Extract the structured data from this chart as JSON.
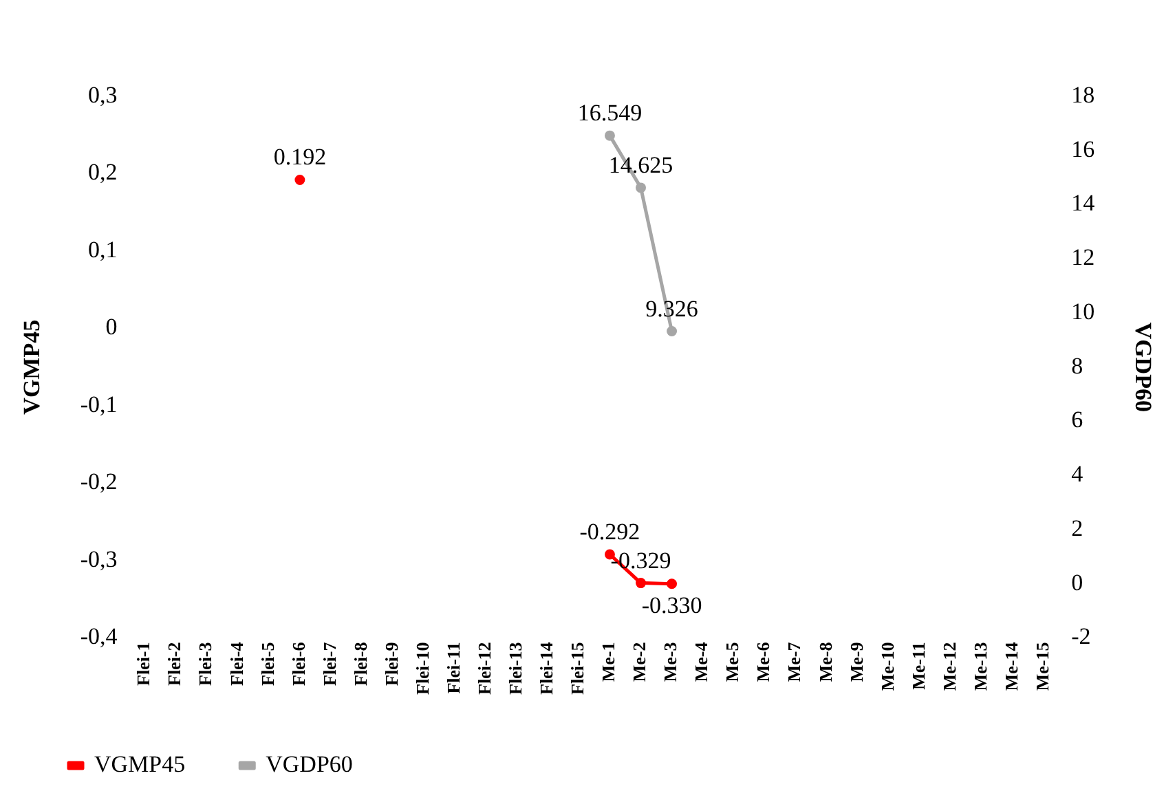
{
  "chart_data": {
    "type": "line",
    "ylabel": "VGMP45",
    "y2label": "VGDP60",
    "categories": [
      "Flei-1",
      "Flei-2",
      "Flei-3",
      "Flei-4",
      "Flei-5",
      "Flei-6",
      "Flei-7",
      "Flei-8",
      "Flei-9",
      "Flei-10",
      "Flei-11",
      "Flei-12",
      "Flei-13",
      "Flei-14",
      "Flei-15",
      "Me-1",
      "Me-2",
      "Me-3",
      "Me-4",
      "Me-5",
      "Me-6",
      "Me-7",
      "Me-8",
      "Me-9",
      "Me-10",
      "Me-11",
      "Me-12",
      "Me-13",
      "Me-14",
      "Me-15"
    ],
    "series": [
      {
        "name": "VGMP45",
        "color": "#ff0000",
        "values": [
          null,
          null,
          null,
          null,
          null,
          0.192,
          null,
          null,
          null,
          null,
          null,
          null,
          null,
          null,
          null,
          -0.292,
          -0.329,
          -0.33,
          null,
          null,
          null,
          null,
          null,
          null,
          null,
          null,
          null,
          null,
          null,
          null
        ],
        "value_labels": [
          null,
          null,
          null,
          null,
          null,
          "0.192",
          null,
          null,
          null,
          null,
          null,
          null,
          null,
          null,
          null,
          "-0.292",
          "-0.329",
          "-0.330",
          null,
          null,
          null,
          null,
          null,
          null,
          null,
          null,
          null,
          null,
          null,
          null
        ]
      },
      {
        "name": "VGDP60",
        "color": "#a6a6a6",
        "axis": "y2",
        "values": [
          null,
          null,
          null,
          null,
          null,
          null,
          null,
          null,
          null,
          null,
          null,
          null,
          null,
          null,
          null,
          16.549,
          14.625,
          9.326,
          null,
          null,
          null,
          null,
          null,
          null,
          null,
          null,
          null,
          null,
          null,
          null
        ]
      }
    ],
    "ylim": [
      -0.4,
      0.3
    ],
    "yticks": [
      {
        "value": -0.4,
        "label": "-0,4"
      },
      {
        "value": -0.3,
        "label": "-0,3"
      },
      {
        "value": -0.2,
        "label": "-0,2"
      },
      {
        "value": -0.1,
        "label": "-0,1"
      },
      0,
      {
        "value": 0.1,
        "label": "0,1"
      },
      {
        "value": 0.2,
        "label": "0,2"
      },
      {
        "value": 0.3,
        "label": "0,3"
      }
    ],
    "y2lim": [
      -2,
      18
    ],
    "y2ticks": [
      -2,
      0,
      2,
      4,
      6,
      8,
      10,
      12,
      14,
      16,
      18
    ],
    "grid": false,
    "legend": "bottom left",
    "marker": "circle",
    "line_style": "solid",
    "data_labels": true
  }
}
